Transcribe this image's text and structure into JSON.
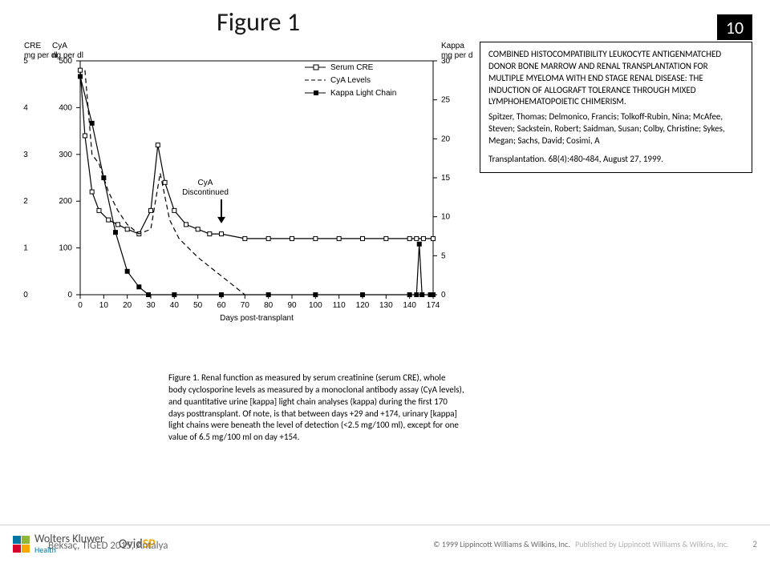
{
  "header": {
    "title": "Figure 1",
    "slide_number": "10"
  },
  "citation": {
    "title": "COMBINED HISTOCOMPATIBILITY LEUKOCYTE ANTIGENMATCHED DONOR BONE MARROW AND RENAL TRANSPLANTATION FOR MULTIPLE MYELOMA WITH END STAGE RENAL DISEASE: THE INDUCTION OF ALLOGRAFT TOLERANCE THROUGH MIXED LYMPHOHEMATOPOIETIC CHIMERISM.",
    "authors": "Spitzer, Thomas; Delmonico, Francis; Tolkoff-Rubin, Nina; McAfee, Steven; Sackstein, Robert; Saidman, Susan; Colby, Christine; Sykes, Megan; Sachs, David; Cosimi, A",
    "journal": "Transplantation. 68(4):480-484, August 27, 1999."
  },
  "chart": {
    "type": "line",
    "x_label": "Days post-transplant",
    "x_ticks": [
      0,
      10,
      20,
      30,
      40,
      50,
      60,
      70,
      80,
      90,
      100,
      110,
      120,
      130,
      140,
      174
    ],
    "axes": {
      "cre": {
        "title_top": "CRE",
        "unit": "mg per dl",
        "ticks": [
          0,
          1,
          2,
          3,
          4,
          5
        ]
      },
      "cya": {
        "title_top": "CyA",
        "unit": "ng per dl",
        "ticks": [
          0,
          100,
          200,
          300,
          400,
          500
        ]
      },
      "kappa": {
        "title_top": "Kappa",
        "unit": "mg per dl",
        "ticks": [
          0,
          5,
          10,
          15,
          20,
          25,
          30
        ]
      }
    },
    "legend": [
      {
        "label": "Serum CRE",
        "marker": "square-open"
      },
      {
        "label": "CyA Levels",
        "marker": "dash"
      },
      {
        "label": "Kappa Light Chain",
        "marker": "square-filled"
      }
    ],
    "annotation": {
      "text": "CyA Discontinued",
      "x_day": 60,
      "arrow": true
    },
    "series": {
      "cre": {
        "ymax": 5,
        "points": [
          [
            0,
            4.8
          ],
          [
            2,
            3.4
          ],
          [
            5,
            2.2
          ],
          [
            8,
            1.8
          ],
          [
            12,
            1.6
          ],
          [
            16,
            1.5
          ],
          [
            20,
            1.4
          ],
          [
            25,
            1.3
          ],
          [
            30,
            1.8
          ],
          [
            33,
            3.2
          ],
          [
            36,
            2.4
          ],
          [
            40,
            1.8
          ],
          [
            45,
            1.5
          ],
          [
            50,
            1.4
          ],
          [
            55,
            1.3
          ],
          [
            60,
            1.3
          ],
          [
            70,
            1.2
          ],
          [
            80,
            1.2
          ],
          [
            90,
            1.2
          ],
          [
            100,
            1.2
          ],
          [
            110,
            1.2
          ],
          [
            120,
            1.2
          ],
          [
            130,
            1.2
          ],
          [
            140,
            1.2
          ],
          [
            150,
            1.2
          ],
          [
            160,
            1.2
          ],
          [
            174,
            1.2
          ]
        ],
        "marker": "square-open"
      },
      "cya": {
        "ymax": 500,
        "points": [
          [
            2,
            480
          ],
          [
            5,
            300
          ],
          [
            8,
            280
          ],
          [
            12,
            220
          ],
          [
            16,
            180
          ],
          [
            20,
            150
          ],
          [
            25,
            130
          ],
          [
            30,
            140
          ],
          [
            34,
            260
          ],
          [
            38,
            160
          ],
          [
            42,
            120
          ],
          [
            46,
            100
          ],
          [
            50,
            80
          ],
          [
            55,
            60
          ],
          [
            60,
            40
          ],
          [
            65,
            20
          ],
          [
            70,
            0
          ]
        ],
        "marker": "none",
        "dash": true
      },
      "kappa": {
        "ymax": 30,
        "points": [
          [
            0,
            28
          ],
          [
            5,
            22
          ],
          [
            10,
            15
          ],
          [
            15,
            8
          ],
          [
            20,
            3
          ],
          [
            25,
            1
          ],
          [
            29,
            0
          ],
          [
            40,
            0
          ],
          [
            60,
            0
          ],
          [
            80,
            0
          ],
          [
            100,
            0
          ],
          [
            120,
            0
          ],
          [
            140,
            0
          ],
          [
            150,
            0
          ],
          [
            154,
            6.5
          ],
          [
            158,
            0
          ],
          [
            170,
            0
          ],
          [
            174,
            0
          ]
        ],
        "marker": "square-filled"
      }
    },
    "colors": {
      "line": "#000000",
      "background": "#ffffff",
      "text": "#000000"
    },
    "fontsize": {
      "axis": 10,
      "label": 11
    }
  },
  "caption": {
    "text": "Figure 1. Renal function as measured by serum creatinine (serum CRE), whole body cyclosporine levels as measured by a monoclonal antibody assay (CyA levels), and quantitative urine [kappa] light chain analyses (kappa) during the first 170 days posttransplant. Of note, is that between days +29 and +174, urinary [kappa] light chains were beneath the level of detection (<2.5 mg/100 ml), except for one value of 6.5 mg/100 ml on day +154."
  },
  "footer": {
    "wk_label": "Wolters Kluwer",
    "wk_sub": "Health",
    "ovid_label": "Ovid",
    "ovid_sp": "SP",
    "overlay": "Beksaç, TIGED 2015, Antalya",
    "copyright": "© 1999 Lippincott Williams & Wilkins, Inc.",
    "publisher": "Published by Lippincott Williams & Wilkins, Inc.",
    "page": "2"
  }
}
